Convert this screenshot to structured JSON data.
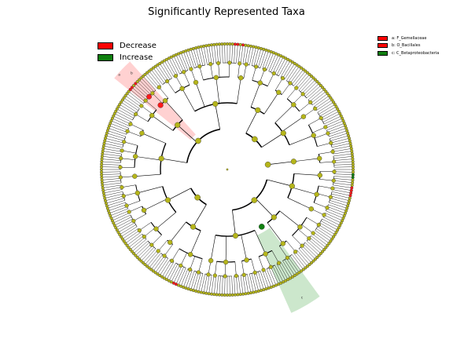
{
  "title": "Significantly Represented Taxa",
  "colors": {
    "decrease": "#ff1a1a",
    "increase": "#108010",
    "node": "#b5b51a",
    "shade_decrease": "#ff9999",
    "shade_increase": "#8fc98f"
  },
  "legend_main": [
    {
      "label": "Decrease",
      "color": "#ff0000"
    },
    {
      "label": "Increase",
      "color": "#0e7f0e"
    }
  ],
  "legend_clades": [
    {
      "label": "a: F_Gemellaceae",
      "color": "#ff0000"
    },
    {
      "label": "b: O_Bacillales",
      "color": "#ff0000"
    },
    {
      "label": "c: C_Betaproteobacteria",
      "color": "#0e7f0e"
    }
  ],
  "clade_labels": {
    "a": "a",
    "b": "b",
    "c": "c"
  }
}
